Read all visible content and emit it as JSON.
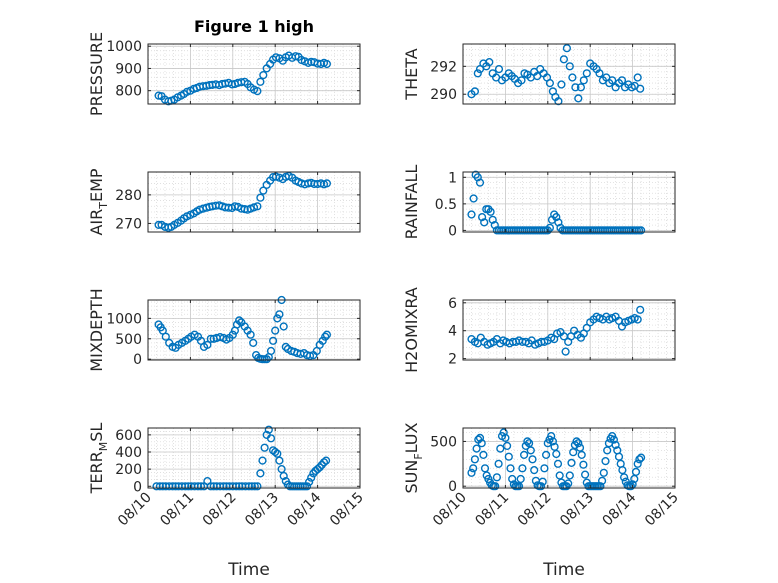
{
  "figure": {
    "title": "Figure 1 high"
  },
  "colors": {
    "marker": "#0072BD",
    "axis": "#262626",
    "grid": "#c8c8c8",
    "minor_grid": "#dcdcdc"
  },
  "chart_data": [
    {
      "type": "scatter",
      "id": "pressure",
      "col": 0,
      "row": 0,
      "ylabel": "PRESSURE",
      "title": "Figure 1 high",
      "ylim": [
        740,
        1010
      ],
      "yticks": [
        800,
        900,
        1000
      ],
      "yticklabels": [
        "800",
        "900",
        "1000"
      ],
      "xlim": [
        0,
        5
      ],
      "xticks": [
        0,
        1,
        2,
        3,
        4,
        5
      ],
      "show_xticklabels": false,
      "x": [
        0.25,
        0.32,
        0.4,
        0.48,
        0.55,
        0.62,
        0.7,
        0.78,
        0.85,
        0.92,
        1.0,
        1.08,
        1.15,
        1.22,
        1.3,
        1.38,
        1.45,
        1.52,
        1.6,
        1.68,
        1.75,
        1.82,
        1.9,
        1.98,
        2.05,
        2.12,
        2.2,
        2.28,
        2.35,
        2.42,
        2.5,
        2.58,
        2.65,
        2.72,
        2.8,
        2.88,
        2.95,
        3.02,
        3.1,
        3.18,
        3.25,
        3.32,
        3.4,
        3.48,
        3.55,
        3.62,
        3.7,
        3.78,
        3.85,
        3.92,
        4.0,
        4.08,
        4.15,
        4.22
      ],
      "y": [
        778,
        775,
        760,
        752,
        755,
        760,
        770,
        778,
        785,
        795,
        800,
        808,
        812,
        818,
        820,
        822,
        825,
        826,
        828,
        825,
        830,
        832,
        835,
        828,
        830,
        835,
        838,
        840,
        830,
        815,
        805,
        798,
        840,
        870,
        900,
        920,
        940,
        950,
        945,
        935,
        950,
        958,
        948,
        955,
        952,
        938,
        932,
        925,
        930,
        928,
        922,
        920,
        925,
        920
      ]
    },
    {
      "type": "scatter",
      "id": "theta",
      "col": 1,
      "row": 0,
      "ylabel": "THETA",
      "ylim": [
        289.3,
        293.6
      ],
      "yticks": [
        290,
        292
      ],
      "yticklabels": [
        "290",
        "292"
      ],
      "xlim": [
        0,
        5
      ],
      "xticks": [
        0,
        1,
        2,
        3,
        4,
        5
      ],
      "show_xticklabels": false,
      "x": [
        0.2,
        0.28,
        0.35,
        0.4,
        0.48,
        0.55,
        0.62,
        0.7,
        0.78,
        0.85,
        0.92,
        1.0,
        1.08,
        1.15,
        1.22,
        1.3,
        1.38,
        1.45,
        1.52,
        1.6,
        1.68,
        1.75,
        1.82,
        1.9,
        1.98,
        2.05,
        2.12,
        2.18,
        2.25,
        2.32,
        2.38,
        2.45,
        2.52,
        2.58,
        2.65,
        2.72,
        2.78,
        2.85,
        2.92,
        3.0,
        3.08,
        3.15,
        3.22,
        3.3,
        3.38,
        3.45,
        3.52,
        3.6,
        3.68,
        3.75,
        3.82,
        3.9,
        3.98,
        4.05,
        4.12,
        4.18
      ],
      "y": [
        290.0,
        290.2,
        291.5,
        291.8,
        292.2,
        292.0,
        292.3,
        291.5,
        291.2,
        291.8,
        291.0,
        291.2,
        291.5,
        291.3,
        291.1,
        290.8,
        291.0,
        291.5,
        291.4,
        291.2,
        291.6,
        291.3,
        291.8,
        291.5,
        291.2,
        290.8,
        290.2,
        289.8,
        289.5,
        290.7,
        292.5,
        293.3,
        292.0,
        291.2,
        290.5,
        289.7,
        290.5,
        291.0,
        291.5,
        292.2,
        292.0,
        291.8,
        291.5,
        291.0,
        291.2,
        290.8,
        291.0,
        290.5,
        290.8,
        291.0,
        290.5,
        290.7,
        290.5,
        290.6,
        291.2,
        290.4
      ]
    },
    {
      "type": "scatter",
      "id": "airtemp",
      "col": 0,
      "row": 1,
      "ylabel": "AIR",
      "ylabel_sub": "T",
      "ylabel_after": "EMP",
      "ylim": [
        267,
        288
      ],
      "yticks": [
        270,
        280
      ],
      "yticklabels": [
        "270",
        "280"
      ],
      "xlim": [
        0,
        5
      ],
      "xticks": [
        0,
        1,
        2,
        3,
        4,
        5
      ],
      "show_xticklabels": false,
      "x": [
        0.25,
        0.32,
        0.4,
        0.48,
        0.55,
        0.62,
        0.7,
        0.78,
        0.85,
        0.92,
        1.0,
        1.08,
        1.15,
        1.22,
        1.3,
        1.38,
        1.45,
        1.52,
        1.6,
        1.68,
        1.75,
        1.82,
        1.9,
        1.98,
        2.05,
        2.12,
        2.2,
        2.28,
        2.35,
        2.42,
        2.5,
        2.58,
        2.65,
        2.72,
        2.8,
        2.88,
        2.95,
        3.02,
        3.1,
        3.18,
        3.25,
        3.32,
        3.4,
        3.48,
        3.55,
        3.62,
        3.7,
        3.78,
        3.85,
        3.92,
        4.0,
        4.08,
        4.15,
        4.22
      ],
      "y": [
        269.5,
        269.5,
        268.8,
        268.5,
        268.8,
        269.5,
        270.2,
        271.0,
        271.8,
        272.5,
        273.0,
        273.5,
        274.2,
        274.8,
        275.2,
        275.5,
        275.8,
        276.0,
        276.2,
        276.3,
        276.0,
        275.6,
        275.5,
        275.4,
        276.0,
        275.8,
        275.2,
        275.0,
        274.8,
        275.2,
        275.6,
        276.0,
        279.0,
        281.5,
        283.5,
        285.0,
        286.2,
        286.4,
        286.0,
        285.5,
        286.3,
        286.6,
        286.0,
        285.0,
        284.5,
        284.0,
        283.7,
        284.0,
        284.2,
        283.8,
        283.8,
        284.0,
        283.7,
        284.0
      ]
    },
    {
      "type": "scatter",
      "id": "rainfall",
      "col": 1,
      "row": 1,
      "ylabel": "RAINFALL",
      "ylim": [
        -0.03,
        1.1
      ],
      "yticks": [
        0,
        0.5,
        1
      ],
      "yticklabels": [
        "0",
        "0.5",
        "1"
      ],
      "xlim": [
        0,
        5
      ],
      "xticks": [
        0,
        1,
        2,
        3,
        4,
        5
      ],
      "show_xticklabels": false,
      "x": [
        0.2,
        0.25,
        0.3,
        0.35,
        0.4,
        0.45,
        0.5,
        0.55,
        0.6,
        0.65,
        0.7,
        0.75,
        0.8,
        0.85,
        0.9,
        0.95,
        1.0,
        1.05,
        1.1,
        1.15,
        1.2,
        1.25,
        1.3,
        1.35,
        1.4,
        1.45,
        1.5,
        1.55,
        1.6,
        1.65,
        1.7,
        1.75,
        1.8,
        1.85,
        1.9,
        1.95,
        2.0,
        2.05,
        2.1,
        2.15,
        2.2,
        2.25,
        2.3,
        2.35,
        2.4,
        2.45,
        2.5,
        2.55,
        2.6,
        2.65,
        2.7,
        2.75,
        2.8,
        2.85,
        2.9,
        2.95,
        3.0,
        3.05,
        3.1,
        3.15,
        3.2,
        3.25,
        3.3,
        3.35,
        3.4,
        3.45,
        3.5,
        3.55,
        3.6,
        3.65,
        3.7,
        3.75,
        3.8,
        3.85,
        3.9,
        3.95,
        4.0,
        4.05,
        4.1,
        4.15,
        4.2
      ],
      "y": [
        0.3,
        0.6,
        1.05,
        1.0,
        0.9,
        0.25,
        0.15,
        0.4,
        0.4,
        0.35,
        0.2,
        0.1,
        0.0,
        0.0,
        0.0,
        0.0,
        0.0,
        0.0,
        0.0,
        0.0,
        0.0,
        0.0,
        0.0,
        0.0,
        0.0,
        0.0,
        0.0,
        0.0,
        0.0,
        0.0,
        0.0,
        0.0,
        0.0,
        0.0,
        0.0,
        0.0,
        0.0,
        0.05,
        0.2,
        0.3,
        0.25,
        0.15,
        0.05,
        0.0,
        0.0,
        0.0,
        0.0,
        0.0,
        0.0,
        0.0,
        0.0,
        0.0,
        0.0,
        0.0,
        0.0,
        0.0,
        0.0,
        0.0,
        0.0,
        0.0,
        0.0,
        0.0,
        0.0,
        0.0,
        0.0,
        0.0,
        0.0,
        0.0,
        0.0,
        0.0,
        0.0,
        0.0,
        0.0,
        0.0,
        0.0,
        0.0,
        0.0,
        0.0,
        0.0,
        0.0,
        0.0
      ]
    },
    {
      "type": "scatter",
      "id": "mixdepth",
      "col": 0,
      "row": 2,
      "ylabel": "MIXDEPTH",
      "ylim": [
        -20,
        1450
      ],
      "yticks": [
        0,
        500,
        1000
      ],
      "yticklabels": [
        "0",
        "500",
        "1000"
      ],
      "xlim": [
        0,
        5
      ],
      "xticks": [
        0,
        1,
        2,
        3,
        4,
        5
      ],
      "show_xticklabels": false,
      "x": [
        0.25,
        0.3,
        0.35,
        0.42,
        0.5,
        0.58,
        0.65,
        0.72,
        0.8,
        0.88,
        0.95,
        1.02,
        1.1,
        1.18,
        1.25,
        1.32,
        1.4,
        1.48,
        1.55,
        1.62,
        1.7,
        1.78,
        1.85,
        1.92,
        2.0,
        2.05,
        2.1,
        2.15,
        2.2,
        2.28,
        2.35,
        2.42,
        2.48,
        2.55,
        2.6,
        2.65,
        2.7,
        2.75,
        2.8,
        2.85,
        2.9,
        2.95,
        3.0,
        3.05,
        3.1,
        3.15,
        3.2,
        3.25,
        3.3,
        3.38,
        3.45,
        3.52,
        3.6,
        3.68,
        3.75,
        3.82,
        3.9,
        3.98,
        4.05,
        4.12,
        4.18,
        4.22
      ],
      "y": [
        850,
        780,
        700,
        550,
        400,
        300,
        280,
        350,
        400,
        450,
        500,
        550,
        600,
        550,
        450,
        300,
        350,
        500,
        500,
        520,
        540,
        520,
        480,
        520,
        600,
        700,
        850,
        950,
        900,
        800,
        700,
        600,
        400,
        100,
        30,
        10,
        0,
        0,
        0,
        50,
        200,
        450,
        700,
        1000,
        1100,
        1450,
        800,
        300,
        250,
        200,
        180,
        150,
        130,
        150,
        100,
        80,
        100,
        200,
        350,
        450,
        550,
        600
      ]
    },
    {
      "type": "scatter",
      "id": "h2omixra",
      "col": 1,
      "row": 2,
      "ylabel": "H2OMIXRA",
      "ylim": [
        1.9,
        6.2
      ],
      "yticks": [
        2,
        4,
        6
      ],
      "yticklabels": [
        "2",
        "4",
        "6"
      ],
      "xlim": [
        0,
        5
      ],
      "xticks": [
        0,
        1,
        2,
        3,
        4,
        5
      ],
      "show_xticklabels": false,
      "x": [
        0.2,
        0.28,
        0.35,
        0.42,
        0.5,
        0.58,
        0.65,
        0.72,
        0.8,
        0.88,
        0.95,
        1.02,
        1.1,
        1.18,
        1.25,
        1.32,
        1.4,
        1.48,
        1.55,
        1.62,
        1.7,
        1.78,
        1.85,
        1.92,
        2.0,
        2.08,
        2.15,
        2.22,
        2.3,
        2.38,
        2.42,
        2.48,
        2.55,
        2.62,
        2.7,
        2.78,
        2.85,
        2.92,
        3.0,
        3.08,
        3.15,
        3.22,
        3.3,
        3.38,
        3.45,
        3.52,
        3.6,
        3.68,
        3.75,
        3.82,
        3.9,
        3.98,
        4.05,
        4.12,
        4.18
      ],
      "y": [
        3.4,
        3.2,
        3.1,
        3.5,
        3.2,
        3.0,
        3.1,
        3.2,
        3.4,
        3.1,
        3.3,
        3.2,
        3.1,
        3.2,
        3.2,
        3.3,
        3.2,
        3.2,
        3.1,
        3.3,
        3.0,
        3.1,
        3.2,
        3.2,
        3.3,
        3.5,
        3.4,
        3.8,
        3.9,
        3.6,
        2.5,
        3.2,
        3.6,
        4.0,
        3.7,
        3.5,
        3.8,
        4.2,
        4.6,
        4.8,
        5.0,
        4.9,
        4.8,
        5.0,
        4.8,
        4.9,
        5.0,
        4.7,
        4.3,
        4.6,
        4.7,
        4.8,
        4.9,
        4.8,
        5.5
      ]
    },
    {
      "type": "scatter",
      "id": "terrmsl",
      "col": 0,
      "row": 3,
      "ylabel": "TERR",
      "ylabel_sub": "M",
      "ylabel_after": "SL",
      "ylim": [
        -20,
        680
      ],
      "yticks": [
        0,
        200,
        400,
        600
      ],
      "yticklabels": [
        "0",
        "200",
        "400",
        "600"
      ],
      "xlim": [
        0,
        5
      ],
      "xticks": [
        0,
        1,
        2,
        3,
        4,
        5
      ],
      "xticklabels": [
        "08/10",
        "08/11",
        "08/12",
        "08/13",
        "08/14",
        "08/15"
      ],
      "show_xticklabels": true,
      "xlabel": "Time",
      "x": [
        0.2,
        0.28,
        0.35,
        0.42,
        0.5,
        0.58,
        0.65,
        0.72,
        0.8,
        0.88,
        0.95,
        1.02,
        1.1,
        1.18,
        1.25,
        1.32,
        1.4,
        1.48,
        1.55,
        1.62,
        1.7,
        1.78,
        1.85,
        1.92,
        2.0,
        2.08,
        2.15,
        2.22,
        2.3,
        2.38,
        2.45,
        2.52,
        2.58,
        2.65,
        2.7,
        2.75,
        2.8,
        2.85,
        2.9,
        2.95,
        3.0,
        3.05,
        3.1,
        3.15,
        3.2,
        3.25,
        3.3,
        3.35,
        3.4,
        3.45,
        3.5,
        3.55,
        3.6,
        3.65,
        3.7,
        3.75,
        3.8,
        3.85,
        3.9,
        3.95,
        4.0,
        4.05,
        4.1,
        4.15,
        4.2
      ],
      "y": [
        0,
        0,
        0,
        0,
        0,
        0,
        0,
        0,
        0,
        0,
        0,
        0,
        0,
        0,
        0,
        0,
        60,
        0,
        0,
        0,
        0,
        0,
        0,
        0,
        0,
        0,
        0,
        0,
        0,
        0,
        0,
        0,
        0,
        150,
        300,
        450,
        600,
        660,
        560,
        420,
        400,
        380,
        300,
        200,
        120,
        60,
        20,
        0,
        0,
        0,
        0,
        0,
        0,
        0,
        0,
        0,
        50,
        100,
        150,
        180,
        200,
        220,
        250,
        280,
        300
      ]
    },
    {
      "type": "scatter",
      "id": "sunflux",
      "col": 1,
      "row": 3,
      "ylabel": "SUN",
      "ylabel_sub": "F",
      "ylabel_after": "LUX",
      "ylim": [
        -20,
        650
      ],
      "yticks": [
        0,
        500
      ],
      "yticklabels": [
        "0",
        "500"
      ],
      "xlim": [
        0,
        5
      ],
      "xticks": [
        0,
        1,
        2,
        3,
        4,
        5
      ],
      "xticklabels": [
        "08/10",
        "08/11",
        "08/12",
        "08/13",
        "08/14",
        "08/15"
      ],
      "show_xticklabels": true,
      "xlabel": "Time",
      "x": [
        0.2,
        0.24,
        0.28,
        0.32,
        0.36,
        0.4,
        0.44,
        0.48,
        0.52,
        0.56,
        0.6,
        0.64,
        0.68,
        0.72,
        0.76,
        0.8,
        0.84,
        0.88,
        0.92,
        0.96,
        1.0,
        1.04,
        1.08,
        1.12,
        1.16,
        1.2,
        1.24,
        1.28,
        1.32,
        1.36,
        1.4,
        1.44,
        1.48,
        1.52,
        1.56,
        1.6,
        1.64,
        1.68,
        1.72,
        1.76,
        1.8,
        1.84,
        1.88,
        1.92,
        1.96,
        2.0,
        2.04,
        2.08,
        2.12,
        2.16,
        2.2,
        2.24,
        2.28,
        2.32,
        2.36,
        2.4,
        2.44,
        2.48,
        2.52,
        2.56,
        2.6,
        2.64,
        2.68,
        2.72,
        2.76,
        2.8,
        2.84,
        2.88,
        2.92,
        2.96,
        3.0,
        3.04,
        3.08,
        3.12,
        3.16,
        3.2,
        3.24,
        3.28,
        3.32,
        3.36,
        3.4,
        3.44,
        3.48,
        3.52,
        3.56,
        3.6,
        3.64,
        3.68,
        3.72,
        3.76,
        3.8,
        3.84,
        3.88,
        3.92,
        3.96,
        4.0,
        4.04,
        4.08,
        4.12,
        4.16,
        4.2
      ],
      "y": [
        150,
        200,
        300,
        420,
        520,
        540,
        480,
        350,
        200,
        120,
        80,
        40,
        10,
        0,
        0,
        100,
        250,
        420,
        560,
        600,
        540,
        450,
        330,
        200,
        80,
        20,
        0,
        0,
        0,
        80,
        200,
        350,
        450,
        500,
        480,
        400,
        300,
        180,
        60,
        10,
        0,
        0,
        50,
        200,
        350,
        480,
        520,
        560,
        500,
        440,
        360,
        250,
        120,
        40,
        0,
        0,
        0,
        30,
        120,
        260,
        380,
        460,
        500,
        480,
        430,
        350,
        240,
        130,
        40,
        0,
        0,
        0,
        0,
        0,
        0,
        0,
        0,
        60,
        150,
        280,
        400,
        480,
        530,
        560,
        520,
        460,
        400,
        330,
        250,
        180,
        100,
        50,
        10,
        0,
        0,
        20,
        80,
        160,
        250,
        300,
        320
      ]
    }
  ]
}
